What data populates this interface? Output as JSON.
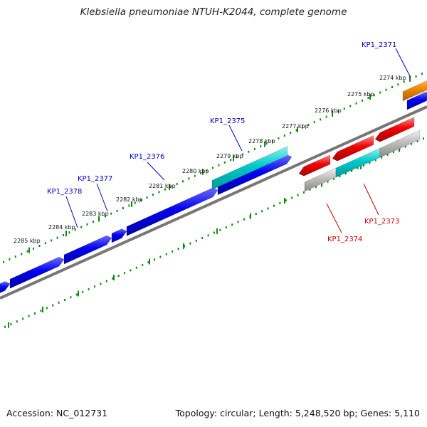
{
  "title": "Klebsiella pneumoniae NTUH-K2044, complete genome",
  "footer": {
    "accession": "Accession: NC_012731",
    "summary": "Topology: circular; Length: 5,248,520 bp; Genes: 5,110"
  },
  "colors": {
    "forward_cds": "#0000ee",
    "highlight": "#00c8c8",
    "reverse_cds": "#ee0000",
    "gray_feature": "#b0b0b0",
    "orange_feature": "#ee8800",
    "backbone": "#777777",
    "tick": "#118811",
    "forward_label": "#0000cc",
    "reverse_label": "#cc0000"
  },
  "scale_labels": [
    "2274 kbp",
    "2275 kbp",
    "2276 kbp",
    "2277 kbp",
    "2278 kbp",
    "2279 kbp",
    "2280 kbp",
    "2281 kbp",
    "2282 kbp",
    "2283 kbp",
    "2284 kbp",
    "2285 kbp"
  ],
  "gene_labels": {
    "forward": [
      "KP1_2371",
      "KP1_2375",
      "KP1_2376",
      "KP1_2377",
      "KP1_2378"
    ],
    "reverse": [
      "KP1_2373",
      "KP1_2374"
    ]
  }
}
